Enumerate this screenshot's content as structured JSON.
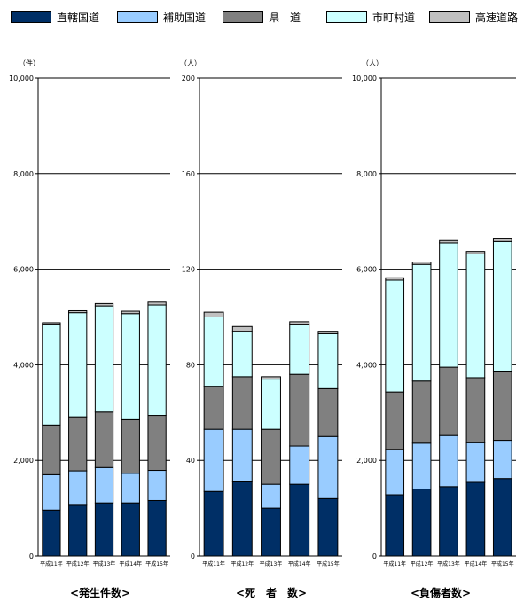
{
  "colors": {
    "直轄国道": "#002f66",
    "補助国道": "#99ccff",
    "県道": "#808080",
    "市町村道": "#ccffff",
    "高速道路": "#c0c0c0"
  },
  "legend": [
    "直轄国道",
    "補助国道",
    "県　道",
    "市町村道",
    "高速道路"
  ],
  "chart_data": [
    {
      "type": "bar",
      "stacked": true,
      "title": "<発生件数>",
      "unit": "（件）",
      "ylim": [
        0,
        10000
      ],
      "yticks": [
        "0",
        "2,000",
        "4,000",
        "6,000",
        "8,000",
        "10,000"
      ],
      "categories": [
        "平成11年",
        "平成12年",
        "平成13年",
        "平成14年",
        "平成15年"
      ],
      "series": [
        {
          "name": "直轄国道",
          "values": [
            960,
            1060,
            1110,
            1110,
            1160
          ]
        },
        {
          "name": "補助国道",
          "values": [
            740,
            720,
            740,
            620,
            630
          ]
        },
        {
          "name": "県　道",
          "values": [
            1040,
            1130,
            1160,
            1120,
            1150
          ]
        },
        {
          "name": "市町村道",
          "values": [
            2110,
            2180,
            2220,
            2220,
            2310
          ]
        },
        {
          "name": "高速道路",
          "values": [
            30,
            40,
            50,
            50,
            60
          ]
        }
      ]
    },
    {
      "type": "bar",
      "stacked": true,
      "title": "<死　者　数>",
      "unit": "（人）",
      "ylim": [
        0,
        200
      ],
      "yticks": [
        "0",
        "40",
        "80",
        "120",
        "160",
        "200"
      ],
      "categories": [
        "平成11年",
        "平成12年",
        "平成13年",
        "平成14年",
        "平成15年"
      ],
      "series": [
        {
          "name": "直轄国道",
          "values": [
            27,
            31,
            20,
            30,
            24
          ]
        },
        {
          "name": "補助国道",
          "values": [
            26,
            22,
            10,
            16,
            26
          ]
        },
        {
          "name": "県　道",
          "values": [
            18,
            22,
            23,
            30,
            20
          ]
        },
        {
          "name": "市町村道",
          "values": [
            29,
            19,
            21,
            21,
            23
          ]
        },
        {
          "name": "高速道路",
          "values": [
            2,
            2,
            1,
            1,
            1
          ]
        }
      ]
    },
    {
      "type": "bar",
      "stacked": true,
      "title": "<負傷者数>",
      "unit": "（人）",
      "ylim": [
        0,
        10000
      ],
      "yticks": [
        "0",
        "2,000",
        "4,000",
        "6,000",
        "8,000",
        "10,000"
      ],
      "categories": [
        "平成11年",
        "平成12年",
        "平成13年",
        "平成14年",
        "平成15年"
      ],
      "series": [
        {
          "name": "直轄国道",
          "values": [
            1280,
            1400,
            1450,
            1540,
            1620
          ]
        },
        {
          "name": "補助国道",
          "values": [
            950,
            960,
            1070,
            830,
            800
          ]
        },
        {
          "name": "県　道",
          "values": [
            1200,
            1300,
            1430,
            1360,
            1430
          ]
        },
        {
          "name": "市町村道",
          "values": [
            2340,
            2440,
            2600,
            2590,
            2730
          ]
        },
        {
          "name": "高速道路",
          "values": [
            50,
            50,
            50,
            50,
            70
          ]
        }
      ]
    }
  ]
}
